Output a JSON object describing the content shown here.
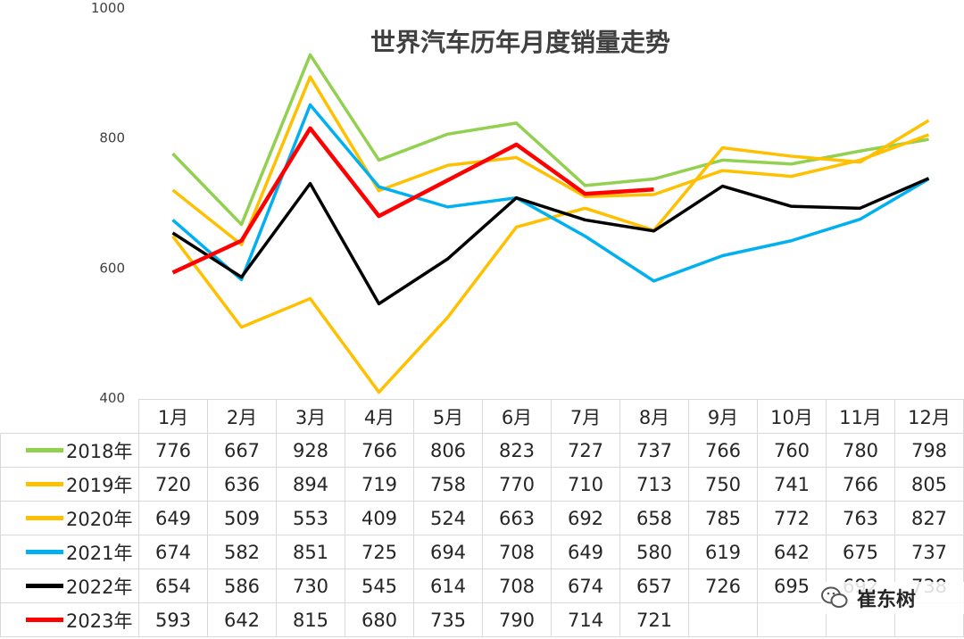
{
  "watermark": {
    "text": "崔东树",
    "icon": "wechat-icon"
  },
  "chart_data": {
    "type": "line",
    "title": "世界汽车历年月度销量走势",
    "categories": [
      "1月",
      "2月",
      "3月",
      "4月",
      "5月",
      "6月",
      "7月",
      "8月",
      "9月",
      "10月",
      "11月",
      "12月"
    ],
    "ylim": [
      400,
      1000
    ],
    "yticks": [
      400,
      600,
      800,
      1000
    ],
    "grid": false,
    "legend_placement": "data-table",
    "series": [
      {
        "name": "2018年",
        "color": "#92d050",
        "values": [
          776,
          667,
          928,
          766,
          806,
          823,
          727,
          737,
          766,
          760,
          780,
          798
        ]
      },
      {
        "name": "2019年",
        "color": "#ffc000",
        "values": [
          720,
          636,
          894,
          719,
          758,
          770,
          710,
          713,
          750,
          741,
          766,
          805
        ]
      },
      {
        "name": "2020年",
        "color": "#ffc000",
        "values": [
          649,
          509,
          553,
          409,
          524,
          663,
          692,
          658,
          785,
          772,
          763,
          827
        ]
      },
      {
        "name": "2021年",
        "color": "#00b0f0",
        "values": [
          674,
          582,
          851,
          725,
          694,
          708,
          649,
          580,
          619,
          642,
          675,
          737
        ]
      },
      {
        "name": "2022年",
        "color": "#000000",
        "values": [
          654,
          586,
          730,
          545,
          614,
          708,
          674,
          657,
          726,
          695,
          692,
          738
        ]
      },
      {
        "name": "2023年",
        "color": "#ff0000",
        "values": [
          593,
          642,
          815,
          680,
          735,
          790,
          714,
          721,
          null,
          null,
          null,
          null
        ]
      }
    ]
  }
}
